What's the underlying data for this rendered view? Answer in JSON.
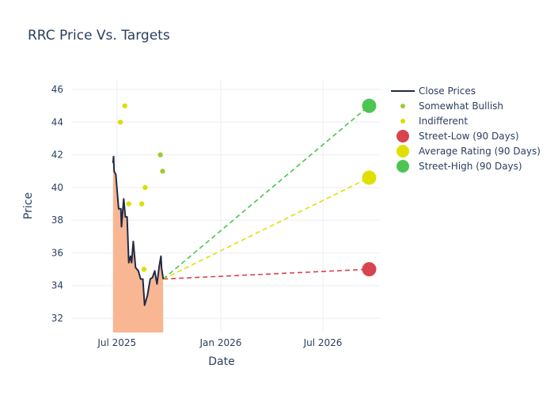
{
  "chart_data": {
    "type": "line",
    "title": "RRC Price Vs. Targets",
    "xlabel": "Date",
    "ylabel": "Price",
    "xlim": [
      "2025-04-11",
      "2026-10-10"
    ],
    "ylim": [
      31.13,
      46.63
    ],
    "x_ticks": [
      {
        "date": "2025-07-01",
        "label": "Jul 2025"
      },
      {
        "date": "2026-01-01",
        "label": "Jan 2026"
      },
      {
        "date": "2026-07-01",
        "label": "Jul 2026"
      }
    ],
    "y_ticks": [
      32,
      34,
      36,
      38,
      40,
      42,
      44,
      46
    ],
    "grid": true,
    "legend_position": "right",
    "colors": {
      "close": "#1f2a44",
      "fill": "#f9b693",
      "somewhat_bullish": "#9acd32",
      "indifferent": "#dede00",
      "street_low": "#d9434f",
      "average": "#e0e000",
      "street_high": "#4cc552",
      "grid": "#ebeef5"
    },
    "close_prices": {
      "name": "Close Prices",
      "points": [
        [
          "2025-06-24",
          41.5
        ],
        [
          "2025-06-25",
          41.9
        ],
        [
          "2025-06-26",
          41.0
        ],
        [
          "2025-06-29",
          40.8
        ],
        [
          "2025-07-04",
          38.7
        ],
        [
          "2025-07-08",
          38.7
        ],
        [
          "2025-07-09",
          37.6
        ],
        [
          "2025-07-13",
          39.3
        ],
        [
          "2025-07-16",
          38.2
        ],
        [
          "2025-07-19",
          38.2
        ],
        [
          "2025-07-22",
          35.4
        ],
        [
          "2025-07-25",
          35.8
        ],
        [
          "2025-07-27",
          35.4
        ],
        [
          "2025-07-30",
          36.7
        ],
        [
          "2025-08-03",
          35.1
        ],
        [
          "2025-08-08",
          34.9
        ],
        [
          "2025-08-12",
          34.4
        ],
        [
          "2025-08-16",
          34.4
        ],
        [
          "2025-08-19",
          32.8
        ],
        [
          "2025-08-24",
          33.4
        ],
        [
          "2025-08-29",
          34.4
        ],
        [
          "2025-09-02",
          34.5
        ],
        [
          "2025-09-06",
          34.9
        ],
        [
          "2025-09-10",
          34.1
        ],
        [
          "2025-09-14",
          35.2
        ],
        [
          "2025-09-17",
          35.8
        ],
        [
          "2025-09-18",
          35.1
        ],
        [
          "2025-09-21",
          34.4
        ]
      ]
    },
    "ratings": [
      {
        "name": "Somewhat Bullish",
        "points": [
          [
            "2025-09-16",
            42
          ],
          [
            "2025-09-20",
            41
          ]
        ]
      },
      {
        "name": "Indifferent",
        "points": [
          [
            "2025-07-07",
            44
          ],
          [
            "2025-07-15",
            45
          ],
          [
            "2025-07-22",
            39
          ],
          [
            "2025-08-14",
            39
          ],
          [
            "2025-08-18",
            35
          ],
          [
            "2025-08-20",
            40
          ]
        ]
      }
    ],
    "targets": {
      "start": [
        "2025-09-21",
        34.4
      ],
      "date": "2026-09-21",
      "series": [
        {
          "name": "Street-Low (90 Days)",
          "value": 35,
          "color_key": "street_low"
        },
        {
          "name": "Average Rating (90 Days)",
          "value": 40.6,
          "color_key": "average"
        },
        {
          "name": "Street-High (90 Days)",
          "value": 45,
          "color_key": "street_high"
        }
      ]
    }
  }
}
